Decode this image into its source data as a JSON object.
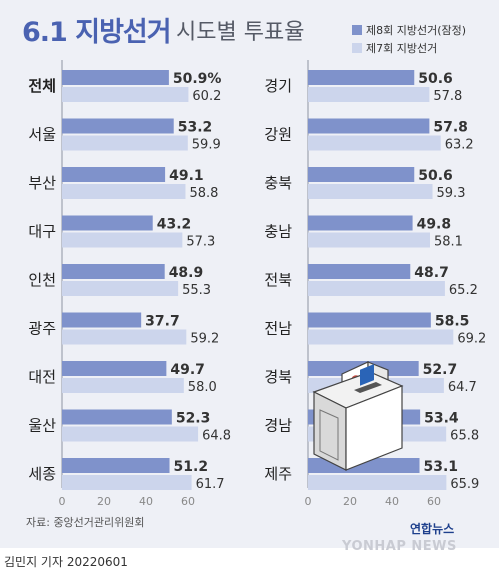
{
  "title": {
    "main": "6.1 지방선거",
    "sub": "시도별 투표율"
  },
  "legend": [
    {
      "label": "제8회 지방선거(잠정)",
      "color": "#7f92cb"
    },
    {
      "label": "제7회 지방선거",
      "color": "#ccd5ec"
    }
  ],
  "chart_data": [
    {
      "type": "bar",
      "orientation": "horizontal",
      "categories": [
        "전체",
        "서울",
        "부산",
        "대구",
        "인천",
        "광주",
        "대전",
        "울산",
        "세종"
      ],
      "series": [
        {
          "name": "제8회 지방선거(잠정)",
          "values": [
            50.9,
            53.2,
            49.1,
            43.2,
            48.9,
            37.7,
            49.7,
            52.3,
            51.2
          ]
        },
        {
          "name": "제7회 지방선거",
          "values": [
            60.2,
            59.9,
            58.8,
            57.3,
            55.3,
            59.2,
            58.0,
            64.8,
            61.7
          ]
        }
      ],
      "value_labels": {
        "new": [
          "50.9%",
          "53.2",
          "49.1",
          "43.2",
          "48.9",
          "37.7",
          "49.7",
          "52.3",
          "51.2"
        ],
        "old": [
          "60.2",
          "59.9",
          "58.8",
          "57.3",
          "55.3",
          "59.2",
          "58.0",
          "64.8",
          "61.7"
        ]
      },
      "xlim": [
        0,
        70
      ],
      "ticks": [
        "0",
        "20",
        "40",
        "60"
      ],
      "grid": false
    },
    {
      "type": "bar",
      "orientation": "horizontal",
      "categories": [
        "경기",
        "강원",
        "충북",
        "충남",
        "전북",
        "전남",
        "경북",
        "경남",
        "제주"
      ],
      "series": [
        {
          "name": "제8회 지방선거(잠정)",
          "values": [
            50.6,
            57.8,
            50.6,
            49.8,
            48.7,
            58.5,
            52.7,
            53.4,
            53.1
          ]
        },
        {
          "name": "제7회 지방선거",
          "values": [
            57.8,
            63.2,
            59.3,
            58.1,
            65.2,
            69.2,
            64.7,
            65.8,
            65.9
          ]
        }
      ],
      "value_labels": {
        "new": [
          "50.6",
          "57.8",
          "50.6",
          "49.8",
          "48.7",
          "58.5",
          "52.7",
          "53.4",
          "53.1"
        ],
        "old": [
          "57.8",
          "63.2",
          "59.3",
          "58.1",
          "65.2",
          "69.2",
          "64.7",
          "65.8",
          "65.9"
        ]
      },
      "xlim": [
        0,
        70
      ],
      "ticks": [
        "0",
        "20",
        "40",
        "60"
      ],
      "grid": false
    }
  ],
  "colors": {
    "new_bar": "#7f92cb",
    "old_bar": "#ccd5ec",
    "axis": "#8f95a3",
    "label": "#333333",
    "title": "#4a62b1"
  },
  "source": "자료: 중앙선거관리위원회",
  "byline": "김민지 기자  20220601",
  "logo": {
    "brand": "연합뉴스",
    "wordmark": "YONHAP NEWS"
  },
  "illustration": "ballot-box-icon"
}
